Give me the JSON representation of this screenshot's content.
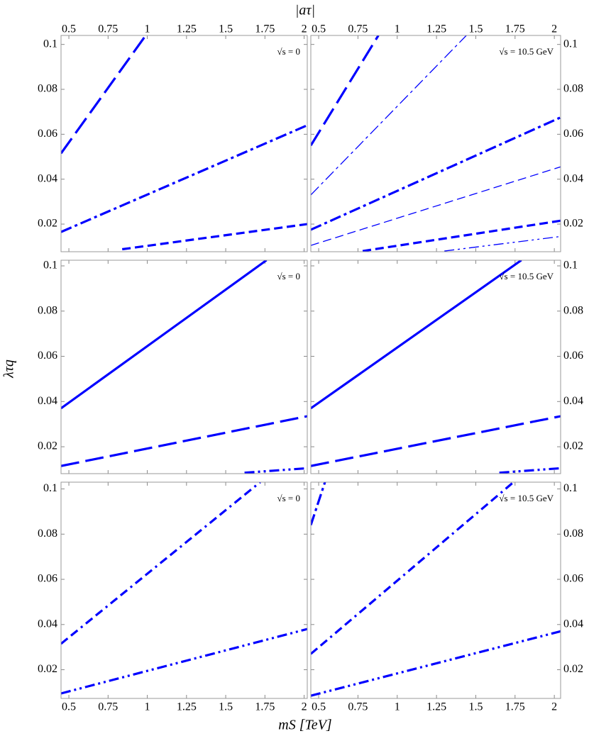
{
  "figure": {
    "top_axis_label": "|aτ|",
    "x_label": "mS [TeV]",
    "y_label": "λτq"
  },
  "chart_data": [
    {
      "type": "line",
      "annotation": "√s = 0",
      "xlim": [
        0.45,
        2.02
      ],
      "ylim": [
        0.0077,
        0.104
      ],
      "xticks": [
        0.5,
        0.75,
        1,
        1.25,
        1.5,
        1.75,
        2
      ],
      "yticks": [
        0.02,
        0.04,
        0.06,
        0.08,
        0.1
      ],
      "series": [
        {
          "color": "#0000ff",
          "style": "long-dash",
          "weight": "thick",
          "x": [
            0.45,
            0.99
          ],
          "values": [
            0.0515,
            0.104
          ]
        },
        {
          "color": "#0000ff",
          "style": "dash-dot",
          "weight": "thick",
          "x": [
            0.45,
            2.02
          ],
          "values": [
            0.0165,
            0.064
          ]
        },
        {
          "color": "#0000ff",
          "style": "dash",
          "weight": "thick",
          "x": [
            0.84,
            2.02
          ],
          "values": [
            0.0088,
            0.02
          ]
        }
      ]
    },
    {
      "type": "line",
      "annotation": "√s = 10.5 GeV",
      "xlim": [
        0.45,
        2.04
      ],
      "ylim": [
        0.0077,
        0.104
      ],
      "xticks": [
        0.5,
        0.75,
        1,
        1.25,
        1.5,
        1.75,
        2
      ],
      "yticks": [
        0.02,
        0.04,
        0.06,
        0.08,
        0.1
      ],
      "series": [
        {
          "color": "#0000ff",
          "style": "long-dash",
          "weight": "thick",
          "x": [
            0.45,
            0.88
          ],
          "values": [
            0.055,
            0.104
          ]
        },
        {
          "color": "#0000ff",
          "style": "dash-dot",
          "weight": "thin",
          "x": [
            0.45,
            1.44
          ],
          "values": [
            0.033,
            0.104
          ]
        },
        {
          "color": "#0000ff",
          "style": "dash-dot",
          "weight": "thick",
          "x": [
            0.45,
            2.04
          ],
          "values": [
            0.0175,
            0.0675
          ]
        },
        {
          "color": "#0000ff",
          "style": "dash",
          "weight": "thin",
          "x": [
            0.45,
            2.04
          ],
          "values": [
            0.0105,
            0.0455
          ]
        },
        {
          "color": "#0000ff",
          "style": "dash",
          "weight": "thick",
          "x": [
            0.78,
            2.04
          ],
          "values": [
            0.008,
            0.0215
          ]
        },
        {
          "color": "#0000ff",
          "style": "dash-dot-dot",
          "weight": "thin",
          "x": [
            1.3,
            2.04
          ],
          "values": [
            0.008,
            0.0145
          ]
        }
      ]
    },
    {
      "type": "line",
      "annotation": "√s = 0",
      "xlim": [
        0.45,
        2.02
      ],
      "ylim": [
        0.0081,
        0.1025
      ],
      "xticks": [
        0.5,
        0.75,
        1,
        1.25,
        1.5,
        1.75,
        2
      ],
      "yticks": [
        0.02,
        0.04,
        0.06,
        0.08,
        0.1
      ],
      "series": [
        {
          "color": "#0000ff",
          "style": "solid",
          "weight": "thick",
          "x": [
            0.45,
            1.76
          ],
          "values": [
            0.037,
            0.1025
          ]
        },
        {
          "color": "#0000ff",
          "style": "long-dash",
          "weight": "thick",
          "x": [
            0.45,
            2.02
          ],
          "values": [
            0.0115,
            0.0335
          ]
        },
        {
          "color": "#0000ff",
          "style": "dash-dot-dot",
          "weight": "thick",
          "x": [
            1.62,
            2.02
          ],
          "values": [
            0.0085,
            0.0105
          ]
        }
      ]
    },
    {
      "type": "line",
      "annotation": "√s = 10.5 GeV",
      "xlim": [
        0.45,
        2.04
      ],
      "ylim": [
        0.0081,
        0.1025
      ],
      "xticks": [
        0.5,
        0.75,
        1,
        1.25,
        1.5,
        1.75,
        2
      ],
      "yticks": [
        0.02,
        0.04,
        0.06,
        0.08,
        0.1
      ],
      "series": [
        {
          "color": "#0000ff",
          "style": "solid",
          "weight": "thick",
          "x": [
            0.45,
            1.79
          ],
          "values": [
            0.037,
            0.1025
          ]
        },
        {
          "color": "#0000ff",
          "style": "long-dash",
          "weight": "thick",
          "x": [
            0.45,
            2.04
          ],
          "values": [
            0.0115,
            0.0335
          ]
        },
        {
          "color": "#0000ff",
          "style": "dash-dot-dot",
          "weight": "thick",
          "x": [
            1.65,
            2.04
          ],
          "values": [
            0.0085,
            0.0105
          ]
        }
      ]
    },
    {
      "type": "line",
      "annotation": "√s = 0",
      "xlim": [
        0.45,
        2.02
      ],
      "ylim": [
        0.0073,
        0.103
      ],
      "xticks": [
        0.5,
        0.75,
        1,
        1.25,
        1.5,
        1.75,
        2
      ],
      "yticks": [
        0.02,
        0.04,
        0.06,
        0.08,
        0.1
      ],
      "series": [
        {
          "color": "#0000ff",
          "style": "dash-dash-dot",
          "weight": "thick",
          "x": [
            0.45,
            1.72
          ],
          "values": [
            0.0315,
            0.103
          ]
        },
        {
          "color": "#0000ff",
          "style": "dash-dot-dot",
          "weight": "thick",
          "x": [
            0.45,
            2.02
          ],
          "values": [
            0.0095,
            0.038
          ]
        }
      ]
    },
    {
      "type": "line",
      "annotation": "√s = 10.5 GeV",
      "xlim": [
        0.45,
        2.04
      ],
      "ylim": [
        0.0073,
        0.103
      ],
      "xticks": [
        0.5,
        0.75,
        1,
        1.25,
        1.5,
        1.75,
        2
      ],
      "yticks": [
        0.02,
        0.04,
        0.06,
        0.08,
        0.1
      ],
      "series": [
        {
          "color": "#0000ff",
          "style": "dash-dot",
          "weight": "thick",
          "x": [
            0.45,
            0.54
          ],
          "values": [
            0.084,
            0.103
          ]
        },
        {
          "color": "#0000ff",
          "style": "dash-dash-dot",
          "weight": "thick",
          "x": [
            0.45,
            1.74
          ],
          "values": [
            0.027,
            0.103
          ]
        },
        {
          "color": "#0000ff",
          "style": "dash-dot-dot",
          "weight": "thick",
          "x": [
            0.45,
            2.04
          ],
          "values": [
            0.0085,
            0.037
          ]
        }
      ]
    }
  ]
}
